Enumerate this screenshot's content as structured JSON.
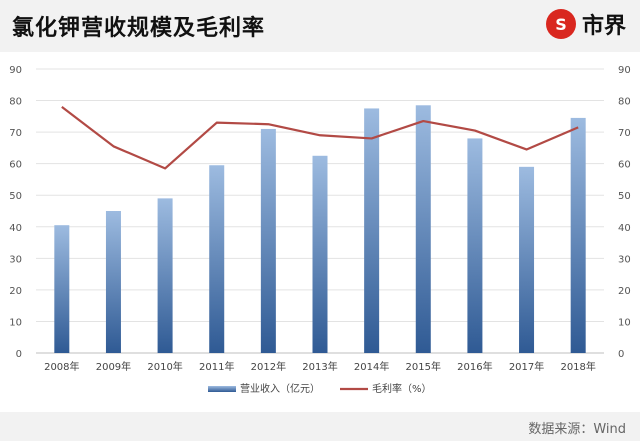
{
  "header": {
    "title": "氯化钾营收规模及毛利率",
    "logo_mark": "S",
    "logo_text": "市界"
  },
  "footer": {
    "source": "数据来源：Wind"
  },
  "chart_data": {
    "type": "bar",
    "categories": [
      "2008年",
      "2009年",
      "2010年",
      "2011年",
      "2012年",
      "2013年",
      "2014年",
      "2015年",
      "2016年",
      "2017年",
      "2018年"
    ],
    "series": [
      {
        "name": "营业收入（亿元）",
        "type": "bar",
        "axis": "left",
        "color": "#3f6aa6",
        "values": [
          40.5,
          45,
          49,
          59.5,
          71,
          62.5,
          77.5,
          78.5,
          68,
          59,
          74.5
        ]
      },
      {
        "name": "毛利率（%）",
        "type": "line",
        "axis": "right",
        "color": "#b24a45",
        "values": [
          78,
          65.5,
          58.5,
          73,
          72.5,
          69,
          68,
          73.5,
          70.5,
          64.5,
          71.5
        ]
      }
    ],
    "yticks": [
      "0",
      "10",
      "20",
      "30",
      "40",
      "50",
      "60",
      "70",
      "80",
      "90"
    ],
    "y2ticks": [
      "0",
      "10",
      "20",
      "30",
      "40",
      "50",
      "60",
      "70",
      "80",
      "90"
    ],
    "ylim": [
      0,
      90
    ],
    "y2lim": [
      0,
      90
    ],
    "grid": true,
    "legend_position": "bottom"
  }
}
